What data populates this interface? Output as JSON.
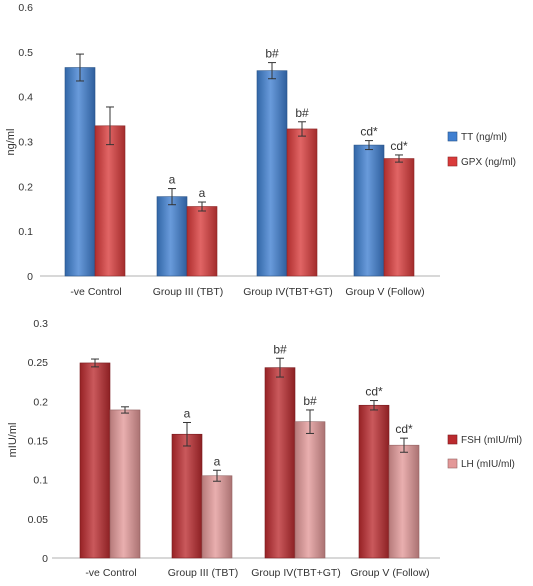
{
  "chart_data": [
    {
      "type": "bar",
      "categories": [
        "-ve Control",
        "Group III (TBT)",
        "Group IV(TBT+GT)",
        "Group V (Follow)"
      ],
      "ylabel": "ng/ml",
      "ylim": [
        0,
        0.6
      ],
      "yticks": [
        "0",
        "0.1",
        "0.2",
        "0.3",
        "0.4",
        "0.5",
        "0.6"
      ],
      "legend_position": "right",
      "series": [
        {
          "name": "TT (ng/ml)",
          "color": "#3f7fd1",
          "values": [
            0.465,
            0.177,
            0.458,
            0.292
          ],
          "errors": [
            0.03,
            0.018,
            0.018,
            0.01
          ],
          "labels": [
            "",
            "a",
            "b#",
            "cd*"
          ]
        },
        {
          "name": "GPX (ng/ml)",
          "color": "#d93a3a",
          "values": [
            0.335,
            0.155,
            0.328,
            0.262
          ],
          "errors": [
            0.042,
            0.01,
            0.016,
            0.008
          ],
          "labels": [
            "",
            "a",
            "b#",
            "cd*"
          ]
        }
      ]
    },
    {
      "type": "bar",
      "categories": [
        "-ve Control",
        "Group III (TBT)",
        "Group IV(TBT+GT)",
        "Group V (Follow)"
      ],
      "ylabel": "mIU/ml",
      "ylim": [
        0,
        0.3
      ],
      "yticks": [
        "0",
        "0.05",
        "0.1",
        "0.15",
        "0.2",
        "0.25",
        "0.3"
      ],
      "legend_position": "right",
      "series": [
        {
          "name": "FSH (mIU/ml)",
          "color": "#bb2a2e",
          "values": [
            0.249,
            0.158,
            0.243,
            0.195
          ],
          "errors": [
            0.005,
            0.015,
            0.012,
            0.006
          ],
          "labels": [
            "",
            "a",
            "b#",
            "cd*"
          ]
        },
        {
          "name": "LH (mIU/ml)",
          "color": "#e39898",
          "values": [
            0.189,
            0.105,
            0.174,
            0.144
          ],
          "errors": [
            0.004,
            0.007,
            0.015,
            0.009
          ],
          "labels": [
            "",
            "a",
            "b#",
            "cd*"
          ]
        }
      ]
    }
  ]
}
